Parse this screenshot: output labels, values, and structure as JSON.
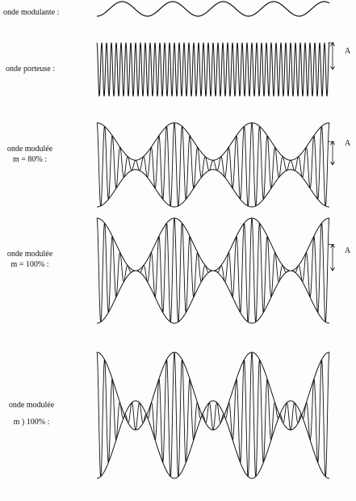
{
  "panels": [
    {
      "id": "modulating",
      "label_lines": [
        "onde modulante :"
      ],
      "kind": "modulating",
      "cycles": 4.6
    },
    {
      "id": "carrier",
      "label_lines": [
        "onde porteuse :"
      ],
      "kind": "carrier",
      "carrier_cycles": 48,
      "amplitude_marker": "A"
    },
    {
      "id": "am80",
      "label_lines": [
        "onde modulée",
        "m = 80% :"
      ],
      "kind": "am",
      "modulation_index": 0.8,
      "envelope_cycles": 3,
      "carrier_cycles": 30,
      "amplitude_marker": "A"
    },
    {
      "id": "am100",
      "label_lines": [
        "onde modulée",
        "m = 100% :"
      ],
      "kind": "am",
      "modulation_index": 1.0,
      "envelope_cycles": 3,
      "carrier_cycles": 30,
      "amplitude_marker": "A"
    },
    {
      "id": "am_over",
      "label_lines": [
        "onde modulée",
        "m ) 100% :"
      ],
      "kind": "am",
      "modulation_index": 1.6,
      "envelope_cycles": 3,
      "carrier_cycles": 30
    }
  ],
  "colors": {
    "ink": "#111111",
    "paper": "#fdfdfc"
  }
}
